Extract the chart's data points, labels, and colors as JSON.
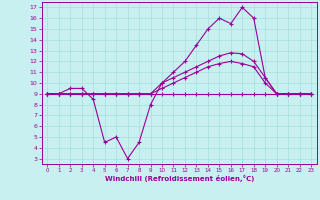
{
  "bg_color": "#c8f0f0",
  "grid_color": "#a8dede",
  "line_color": "#990099",
  "xlim": [
    -0.5,
    23.5
  ],
  "ylim": [
    2.5,
    17.5
  ],
  "xticks": [
    0,
    1,
    2,
    3,
    4,
    5,
    6,
    7,
    8,
    9,
    10,
    11,
    12,
    13,
    14,
    15,
    16,
    17,
    18,
    19,
    20,
    21,
    22,
    23
  ],
  "yticks": [
    3,
    4,
    5,
    6,
    7,
    8,
    9,
    10,
    11,
    12,
    13,
    14,
    15,
    16,
    17
  ],
  "xlabel": "Windchill (Refroidissement éolien,°C)",
  "line1_x": [
    0,
    1,
    2,
    3,
    4,
    5,
    6,
    7,
    8,
    9,
    10,
    11,
    12,
    13,
    14,
    15,
    16,
    17,
    18,
    19,
    20,
    21,
    22,
    23
  ],
  "line1_y": [
    9,
    9,
    9,
    9,
    9,
    9,
    9,
    9,
    9,
    9,
    9,
    9,
    9,
    9,
    9,
    9,
    9,
    9,
    9,
    9,
    9,
    9,
    9,
    9
  ],
  "line2_x": [
    0,
    1,
    2,
    3,
    4,
    5,
    6,
    7,
    8,
    9,
    10,
    11,
    12,
    13,
    14,
    15,
    16,
    17,
    18,
    19,
    20,
    21,
    22,
    23
  ],
  "line2_y": [
    9,
    9,
    9.5,
    9.5,
    8.5,
    4.5,
    5,
    3,
    4.5,
    8,
    10,
    11,
    12,
    13.5,
    15,
    16,
    15.5,
    17,
    16,
    10.5,
    9,
    9,
    9,
    9
  ],
  "line3_x": [
    0,
    1,
    2,
    3,
    4,
    5,
    6,
    7,
    8,
    9,
    10,
    11,
    12,
    13,
    14,
    15,
    16,
    17,
    18,
    19,
    20,
    21,
    22,
    23
  ],
  "line3_y": [
    9,
    9,
    9,
    9,
    9,
    9,
    9,
    9,
    9,
    9,
    10,
    10.5,
    11,
    11.5,
    12,
    12.5,
    12.8,
    12.7,
    12,
    10.5,
    9,
    9,
    9,
    9
  ],
  "line4_x": [
    0,
    1,
    2,
    3,
    4,
    5,
    6,
    7,
    8,
    9,
    10,
    11,
    12,
    13,
    14,
    15,
    16,
    17,
    18,
    19,
    20,
    21,
    22,
    23
  ],
  "line4_y": [
    9,
    9,
    9,
    9,
    9,
    9,
    9,
    9,
    9,
    9,
    9.5,
    10,
    10.5,
    11,
    11.5,
    11.8,
    12,
    11.8,
    11.5,
    10,
    9,
    9,
    9,
    9
  ]
}
